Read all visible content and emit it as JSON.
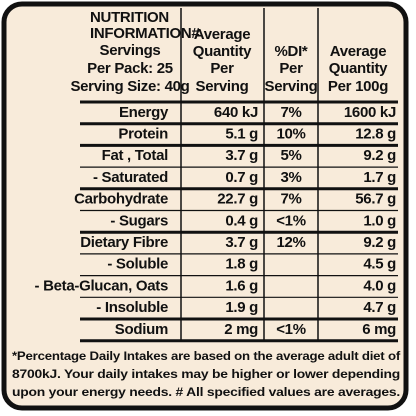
{
  "header": {
    "title": [
      "NUTRITION",
      "INFORMATION#"
    ],
    "servings": [
      "Servings",
      "Per Pack: 25",
      "Serving Size: 40g"
    ],
    "columns": [
      [
        "Average",
        "Quantity",
        "Per",
        "Serving"
      ],
      [
        "%DI*",
        "Per",
        "Serving"
      ],
      [
        "Average",
        "Quantity",
        "Per 100g"
      ]
    ]
  },
  "table": {
    "rows": [
      [
        "Energy",
        "640 kJ",
        "7%",
        "1600 kJ"
      ],
      [
        "Protein",
        "5.1 g",
        "10%",
        "12.8 g"
      ],
      [
        "Fat , Total",
        "3.7 g",
        "5%",
        "9.2 g"
      ],
      [
        "- Saturated",
        "0.7 g",
        "3%",
        "1.7 g"
      ],
      [
        "Carbohydrate",
        "22.7 g",
        "7%",
        "56.7 g"
      ],
      [
        "- Sugars",
        "0.4 g",
        "<1%",
        "1.0 g"
      ],
      [
        "Dietary Fibre",
        "3.7 g",
        "12%",
        "9.2 g"
      ],
      [
        "- Soluble",
        "1.8 g",
        "",
        "4.5 g"
      ],
      [
        "- Beta-Glucan, Oats",
        "1.6 g",
        "",
        "4.0 g"
      ],
      [
        "- Insoluble",
        "1.9 g",
        "",
        "4.7 g"
      ],
      [
        "Sodium",
        "2 mg",
        "<1%",
        "6 mg"
      ]
    ]
  },
  "footnote": [
    "*Percentage Daily Intakes are based on the average adult diet of",
    "8700kJ.  Your daily intakes may be higher or lower depending",
    "upon your energy needs. # All specified values are averages."
  ]
}
